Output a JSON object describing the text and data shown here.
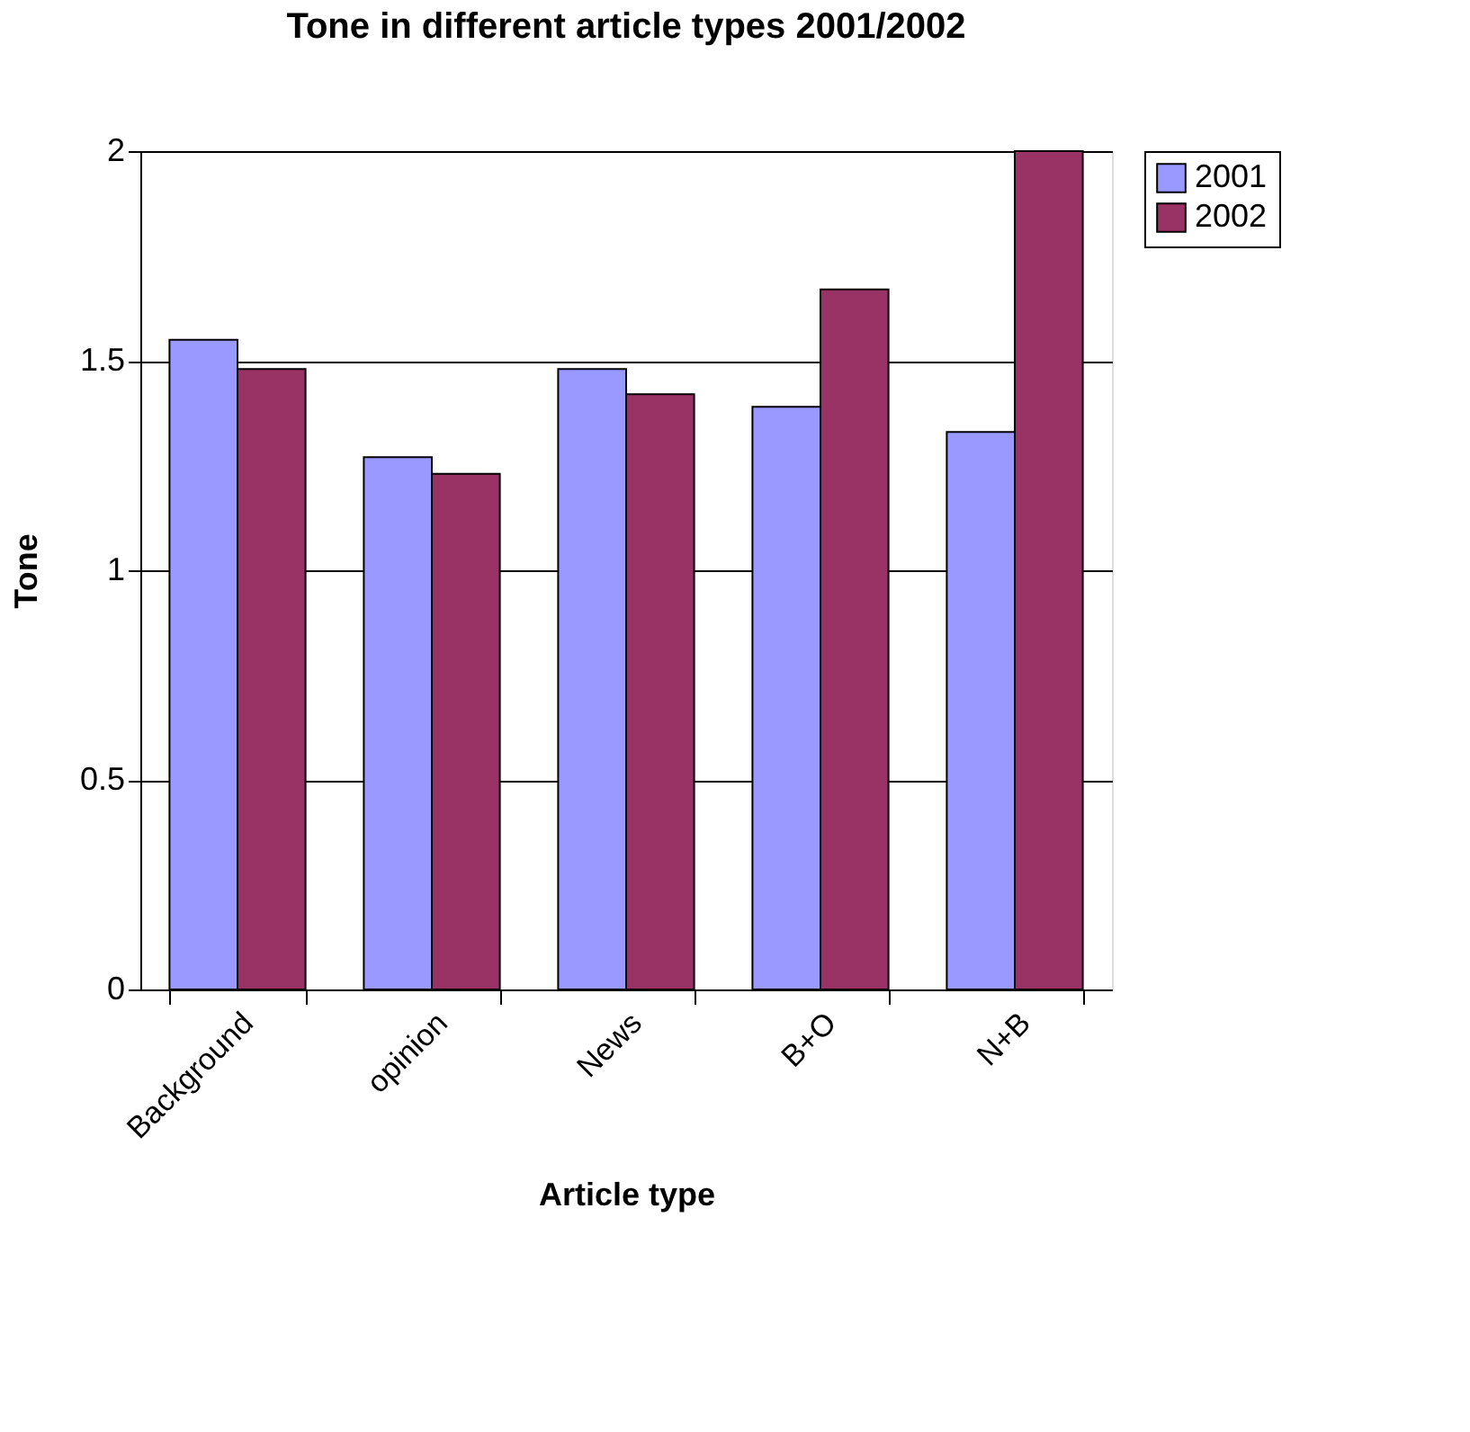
{
  "chart_data": {
    "type": "bar",
    "title": "Tone in different article types 2001/2002",
    "xlabel": "Article type",
    "ylabel": "Tone",
    "categories": [
      "Background",
      "opinion",
      "News",
      "B+O",
      "N+B"
    ],
    "series": [
      {
        "name": "2001",
        "color": "#9999ff",
        "values": [
          1.55,
          1.27,
          1.48,
          1.39,
          1.33
        ]
      },
      {
        "name": "2002",
        "color": "#993366",
        "values": [
          1.48,
          1.23,
          1.42,
          1.67,
          2.0
        ]
      }
    ],
    "ylim": [
      0,
      2
    ],
    "yticks": [
      0,
      0.5,
      1,
      1.5,
      2
    ],
    "grid": "y",
    "legend": "right"
  }
}
